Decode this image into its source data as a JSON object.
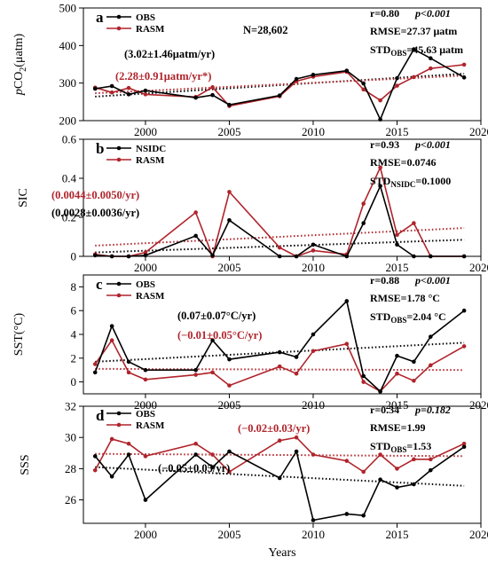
{
  "figure": {
    "xlabel": "Years",
    "x_ticks": [
      2000,
      2005,
      2010,
      2015,
      2020
    ],
    "xlim": [
      1996.3,
      2020
    ]
  },
  "colors": {
    "obs": "#000000",
    "rasm": "#b0242b"
  },
  "chart_data": [
    {
      "type": "line",
      "panel_label": "a",
      "ylabel": "pCO2(μatm)",
      "ylabel_main": "p",
      "ylabel_rest": "CO",
      "ylabel_sub": "2",
      "ylabel_unit": "(μatm)",
      "ylim": [
        200,
        500
      ],
      "y_ticks": [
        200,
        300,
        400,
        500
      ],
      "n_label": "N=28,602",
      "x": [
        1997,
        1998,
        1999,
        2000,
        2003,
        2004,
        2005,
        2008,
        2009,
        2010,
        2012,
        2013,
        2014,
        2015,
        2016,
        2017,
        2019
      ],
      "series": [
        {
          "name": "OBS",
          "values": [
            285,
            292,
            270,
            280,
            261,
            268,
            242,
            267,
            311,
            322,
            333,
            299,
            203,
            313,
            390,
            366,
            315
          ],
          "trend": [
            264,
            325
          ],
          "trend_label": "(3.02±1.46μatm/yr)"
        },
        {
          "name": "RASM",
          "values": [
            288,
            275,
            287,
            270,
            263,
            289,
            239,
            265,
            305,
            317,
            330,
            283,
            254,
            293,
            316,
            339,
            349
          ],
          "trend": [
            273,
            320
          ],
          "trend_label": "(2.28±0.91μatm/yr*)"
        }
      ],
      "stats": {
        "r": "r=0.80",
        "p": "p<0.001",
        "rmse": "RMSE=27.37 μatm",
        "std_main": "STD",
        "std_sub": "OBS",
        "std_val": "=45.63 μatm"
      }
    },
    {
      "type": "line",
      "panel_label": "b",
      "ylabel": "SIC",
      "ylim": [
        0,
        0.6
      ],
      "y_ticks": [
        0,
        0.2,
        0.4,
        0.6
      ],
      "x": [
        1997,
        1998,
        1999,
        2000,
        2003,
        2004,
        2005,
        2008,
        2009,
        2010,
        2012,
        2013,
        2014,
        2015,
        2016,
        2017,
        2019
      ],
      "series": [
        {
          "name": "NSIDC",
          "values": [
            0.005,
            0.0,
            0.0,
            0.005,
            0.105,
            0.005,
            0.185,
            0.0,
            0.0,
            0.06,
            0.0,
            0.17,
            0.36,
            0.06,
            0.0,
            0.0,
            0.0
          ],
          "trend": [
            0.02,
            0.085
          ],
          "trend_label": "(0.0028±0.0036/yr)"
        },
        {
          "name": "RASM",
          "values": [
            0.01,
            0.0,
            0.0,
            0.02,
            0.225,
            0.0,
            0.33,
            0.045,
            0.0,
            0.03,
            0.01,
            0.27,
            0.455,
            0.11,
            0.17,
            0.0,
            0.0
          ],
          "trend": [
            0.055,
            0.145
          ],
          "trend_label": "(0.0044±0.0050/yr)"
        }
      ],
      "stats": {
        "r": "r=0.93",
        "p": "p<0.001",
        "rmse": "RMSE=0.0746",
        "std_main": "STD",
        "std_sub": "NSIDC",
        "std_val": "=0.1000"
      }
    },
    {
      "type": "line",
      "panel_label": "c",
      "ylabel": "SST(°C)",
      "ylim": [
        -1,
        9
      ],
      "y_ticks": [
        0,
        2,
        4,
        6,
        8
      ],
      "x": [
        1997,
        1998,
        1999,
        2000,
        2003,
        2004,
        2005,
        2008,
        2009,
        2010,
        2012,
        2013,
        2014,
        2015,
        2016,
        2017,
        2019
      ],
      "series": [
        {
          "name": "OBS",
          "values": [
            0.8,
            4.7,
            1.7,
            1.0,
            1.0,
            3.5,
            1.9,
            2.5,
            2.1,
            4.0,
            6.8,
            0.5,
            -0.8,
            2.2,
            1.7,
            3.8,
            6.0
          ],
          "trend": [
            1.7,
            3.3
          ],
          "trend_label": "(0.07±0.07°C/yr)"
        },
        {
          "name": "RASM",
          "values": [
            1.5,
            3.5,
            0.8,
            0.2,
            0.6,
            0.8,
            -0.3,
            1.3,
            0.7,
            2.6,
            3.2,
            0.0,
            -0.8,
            0.7,
            0.1,
            1.4,
            3.0
          ],
          "trend": [
            1.1,
            1.0
          ],
          "trend_label": "(−0.01±0.05°C/yr)"
        }
      ],
      "stats": {
        "r": "r=0.88",
        "p": "p<0.001",
        "rmse": "RMSE=1.78 °C",
        "std_main": "STD",
        "std_sub": "OBS",
        "std_val": "=2.04 °C"
      }
    },
    {
      "type": "line",
      "panel_label": "d",
      "ylabel": "SSS",
      "ylim": [
        24.5,
        32
      ],
      "y_ticks": [
        26,
        28,
        30,
        32
      ],
      "x": [
        1997,
        1998,
        1999,
        2000,
        2003,
        2004,
        2005,
        2008,
        2009,
        2010,
        2012,
        2013,
        2014,
        2015,
        2016,
        2017,
        2019
      ],
      "series": [
        {
          "name": "OBS",
          "values": [
            28.8,
            27.5,
            28.9,
            26.0,
            28.9,
            28.1,
            29.1,
            27.4,
            29.1,
            24.7,
            25.1,
            25.0,
            27.3,
            26.8,
            27.0,
            27.9,
            29.4
          ],
          "trend": [
            28.1,
            26.9
          ],
          "trend_label": "(−0.05±0.05/yr)"
        },
        {
          "name": "RASM",
          "values": [
            27.9,
            29.9,
            29.6,
            28.8,
            29.6,
            28.9,
            27.8,
            29.8,
            30.0,
            28.9,
            28.5,
            27.8,
            28.9,
            28.0,
            28.6,
            28.6,
            29.6
          ],
          "trend": [
            28.95,
            28.8
          ],
          "trend_label": "(−0.02±0.03/yr)"
        }
      ],
      "stats": {
        "r": "r=0.34",
        "p": "p=0.182",
        "rmse": "RMSE=1.99",
        "std_main": "STD",
        "std_sub": "OBS",
        "std_val": "=1.53"
      }
    }
  ]
}
